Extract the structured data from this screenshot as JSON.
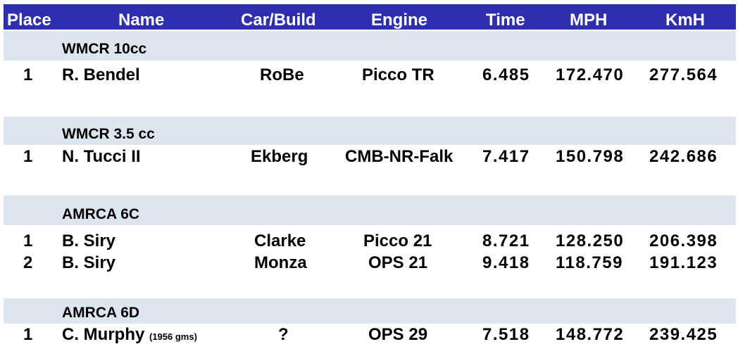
{
  "headers": {
    "place": "Place",
    "name": "Name",
    "car": "Car/Build",
    "engine": "Engine",
    "time": "Time",
    "mph": "MPH",
    "kmh": "KmH"
  },
  "sections": [
    {
      "category": "WMCR  10cc",
      "rows": [
        {
          "place": "1",
          "name": "R. Bendel",
          "note": "",
          "car": "RoBe",
          "engine": "Picco TR",
          "time": "6.485",
          "mph": "172.470",
          "kmh": "277.564"
        }
      ]
    },
    {
      "category": "WMCR  3.5 cc",
      "rows": [
        {
          "place": "1",
          "name": "N. Tucci II",
          "note": "",
          "car": "Ekberg",
          "engine": "CMB-NR-Falk",
          "time": "7.417",
          "mph": "150.798",
          "kmh": "242.686"
        }
      ]
    },
    {
      "category": "AMRCA 6C",
      "rows": [
        {
          "place": "1",
          "name": "B. Siry",
          "note": "",
          "car": "Clarke",
          "engine": "Picco 21",
          "time": "8.721",
          "mph": "128.250",
          "kmh": "206.398"
        },
        {
          "place": "2",
          "name": "B. Siry",
          "note": "",
          "car": "Monza",
          "engine": "OPS 21",
          "time": "9.418",
          "mph": "118.759",
          "kmh": "191.123"
        }
      ]
    },
    {
      "category": "AMRCA 6D",
      "rows": [
        {
          "place": "1",
          "name": "C. Murphy",
          "note": "(1956 gms)",
          "car": "?",
          "engine": "OPS 29",
          "time": "7.518",
          "mph": "148.772",
          "kmh": "239.425"
        }
      ]
    }
  ],
  "colors": {
    "header_bg": "#2f2fae",
    "header_text": "#ffffff",
    "band_bg": "#dde5ef"
  }
}
